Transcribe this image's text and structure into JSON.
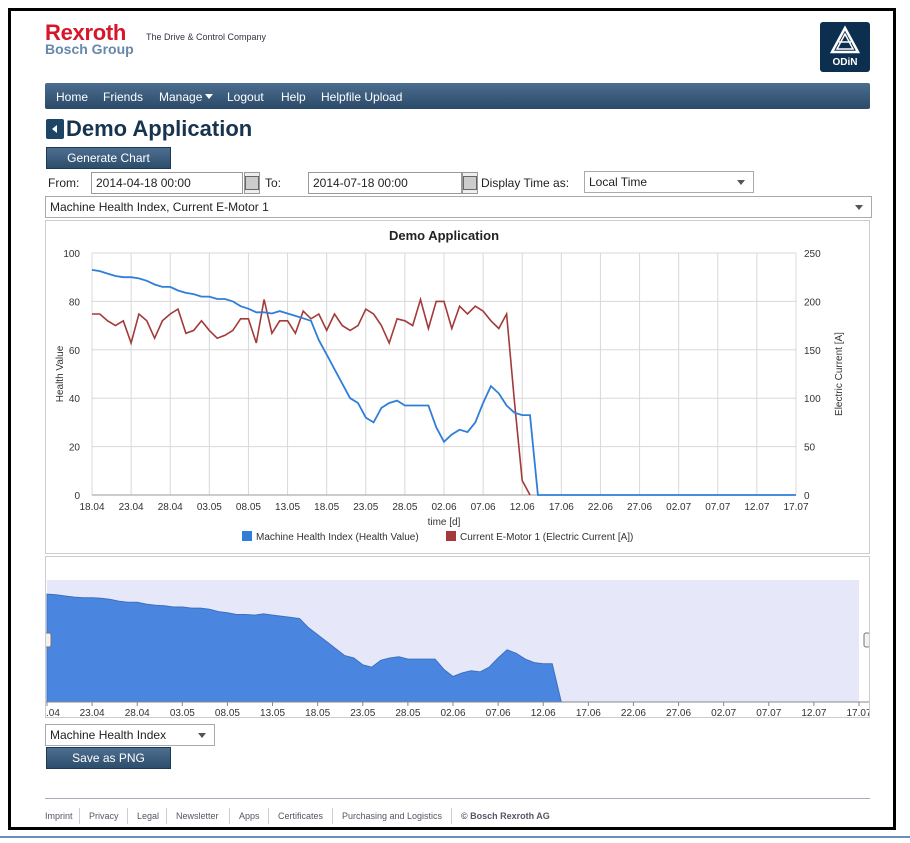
{
  "header": {
    "logo_line1": "Rexroth",
    "logo_line2": "Bosch Group",
    "tagline": "The Drive & Control Company",
    "odin_label": "ODiN"
  },
  "nav": {
    "items": [
      "Home",
      "Friends",
      "Manage",
      "Logout",
      "Help",
      "Helpfile Upload"
    ]
  },
  "page": {
    "title": "Demo Application",
    "generate_button": "Generate Chart",
    "from_label": "From:",
    "from_value": "2014-04-18 00:00",
    "to_label": "To:",
    "to_value": "2014-07-18 00:00",
    "display_time_label": "Display Time as:",
    "display_time_value": "Local Time",
    "series_select_value": "Machine Health Index, Current E-Motor 1",
    "bottom_select_value": "Machine Health Index",
    "save_button": "Save as PNG"
  },
  "footer": {
    "links": [
      "Imprint",
      "Privacy",
      "Legal",
      "Newsletter",
      "Apps",
      "Certificates",
      "Purchasing and Logistics",
      "© Bosch Rexroth AG"
    ]
  },
  "colors": {
    "health": "#2f7ed8",
    "current": "#a33a3a",
    "navigator_fill": "#4a86e0",
    "navigator_bg": "#e6e8fa"
  },
  "chart_data": {
    "type": "line",
    "title": "Demo Application",
    "xlabel": "time [d]",
    "ylabel": "Health Value",
    "y2label": "Electric Current [A]",
    "x_ticks": [
      "18.04",
      "23.04",
      "28.04",
      "03.05",
      "08.05",
      "13.05",
      "18.05",
      "23.05",
      "28.05",
      "02.06",
      "07.06",
      "12.06",
      "17.06",
      "22.06",
      "27.06",
      "02.07",
      "07.07",
      "12.07",
      "17.07"
    ],
    "nav_x_ticks": [
      ".04",
      "23.04",
      "28.04",
      "03.05",
      "08.05",
      "13.05",
      "18.05",
      "23.05",
      "28.05",
      "02.06",
      "07.06",
      "12.06",
      "17.06",
      "22.06",
      "27.06",
      "02.07",
      "07.07",
      "12.07",
      "17.07"
    ],
    "y_ticks": [
      "0",
      "20",
      "40",
      "60",
      "80",
      "100"
    ],
    "y2_ticks": [
      "0",
      "50",
      "100",
      "150",
      "200",
      "250"
    ],
    "ylim": [
      0,
      100
    ],
    "y2lim": [
      0,
      250
    ],
    "xlim_days": [
      0,
      90
    ],
    "grid": true,
    "legend_position": "bottom",
    "series": [
      {
        "name": "Machine Health Index (Health Value)",
        "axis": "left",
        "points": [
          [
            0,
            93
          ],
          [
            1,
            92.5
          ],
          [
            2,
            91.5
          ],
          [
            3,
            90.5
          ],
          [
            4,
            90
          ],
          [
            5,
            90
          ],
          [
            6,
            89.5
          ],
          [
            7,
            88.5
          ],
          [
            8,
            87
          ],
          [
            9,
            86
          ],
          [
            10,
            86
          ],
          [
            11,
            84.5
          ],
          [
            12,
            83.5
          ],
          [
            13,
            83
          ],
          [
            14,
            82
          ],
          [
            15,
            82
          ],
          [
            16,
            81
          ],
          [
            17,
            81
          ],
          [
            18,
            80
          ],
          [
            19,
            78
          ],
          [
            20,
            77
          ],
          [
            21,
            75.5
          ],
          [
            22,
            75.5
          ],
          [
            23,
            75
          ],
          [
            24,
            76
          ],
          [
            25,
            75
          ],
          [
            26,
            74
          ],
          [
            27,
            73
          ],
          [
            28,
            72
          ],
          [
            29,
            64
          ],
          [
            30,
            58
          ],
          [
            31,
            52
          ],
          [
            32,
            46
          ],
          [
            33,
            40
          ],
          [
            34,
            38
          ],
          [
            35,
            32
          ],
          [
            36,
            30
          ],
          [
            37,
            36
          ],
          [
            38,
            38
          ],
          [
            39,
            39
          ],
          [
            40,
            37
          ],
          [
            41,
            37
          ],
          [
            42,
            37
          ],
          [
            43,
            37
          ],
          [
            44,
            28
          ],
          [
            45,
            22
          ],
          [
            46,
            25
          ],
          [
            47,
            27
          ],
          [
            48,
            26
          ],
          [
            49,
            30
          ],
          [
            50,
            38
          ],
          [
            51,
            45
          ],
          [
            52,
            42
          ],
          [
            53,
            37
          ],
          [
            54,
            34
          ],
          [
            55,
            33
          ],
          [
            56,
            33
          ],
          [
            57,
            0
          ],
          [
            90,
            0
          ]
        ]
      },
      {
        "name": "Current E-Motor 1 (Electric Current [A])",
        "axis": "right",
        "points": [
          [
            0,
            187
          ],
          [
            1,
            187
          ],
          [
            2,
            180
          ],
          [
            3,
            175
          ],
          [
            4,
            180
          ],
          [
            5,
            157
          ],
          [
            6,
            187
          ],
          [
            7,
            180
          ],
          [
            8,
            162
          ],
          [
            9,
            180
          ],
          [
            10,
            187
          ],
          [
            11,
            192
          ],
          [
            12,
            167
          ],
          [
            13,
            170
          ],
          [
            14,
            180
          ],
          [
            15,
            170
          ],
          [
            16,
            162
          ],
          [
            17,
            165
          ],
          [
            18,
            170
          ],
          [
            19,
            182
          ],
          [
            20,
            182
          ],
          [
            21,
            157
          ],
          [
            22,
            202
          ],
          [
            23,
            167
          ],
          [
            24,
            180
          ],
          [
            25,
            180
          ],
          [
            26,
            167
          ],
          [
            27,
            190
          ],
          [
            28,
            182
          ],
          [
            29,
            187
          ],
          [
            30,
            170
          ],
          [
            31,
            187
          ],
          [
            32,
            175
          ],
          [
            33,
            170
          ],
          [
            34,
            175
          ],
          [
            35,
            192
          ],
          [
            36,
            187
          ],
          [
            37,
            175
          ],
          [
            38,
            157
          ],
          [
            39,
            182
          ],
          [
            40,
            180
          ],
          [
            41,
            175
          ],
          [
            42,
            202
          ],
          [
            43,
            172
          ],
          [
            44,
            200
          ],
          [
            45,
            200
          ],
          [
            46,
            172
          ],
          [
            47,
            195
          ],
          [
            48,
            187
          ],
          [
            49,
            195
          ],
          [
            50,
            190
          ],
          [
            51,
            180
          ],
          [
            52,
            172
          ],
          [
            53,
            187
          ],
          [
            54,
            97
          ],
          [
            55,
            15
          ],
          [
            56,
            0
          ]
        ]
      }
    ]
  }
}
